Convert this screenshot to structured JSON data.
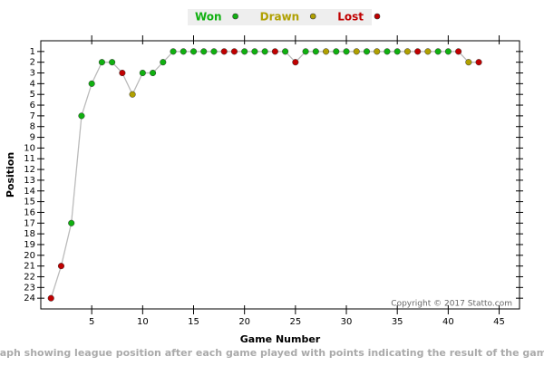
{
  "chart_data": {
    "type": "line",
    "x_label": "Game Number",
    "y_label": "Position",
    "caption": "Graph showing league position after each game played with points indicating the result of the game.",
    "copyright": "Copyright © 2017 Statto.com",
    "x": [
      1,
      2,
      3,
      4,
      5,
      6,
      7,
      8,
      9,
      10,
      11,
      12,
      13,
      14,
      15,
      16,
      17,
      18,
      19,
      20,
      21,
      22,
      23,
      24,
      25,
      26,
      27,
      28,
      29,
      30,
      31,
      32,
      33,
      34,
      35,
      36,
      37,
      38,
      39,
      40,
      41,
      42,
      43
    ],
    "values": [
      24,
      21,
      17,
      7,
      4,
      2,
      2,
      3,
      5,
      3,
      3,
      2,
      1,
      1,
      1,
      1,
      1,
      1,
      1,
      1,
      1,
      1,
      1,
      1,
      2,
      1,
      1,
      1,
      1,
      1,
      1,
      1,
      1,
      1,
      1,
      1,
      1,
      1,
      1,
      1,
      1,
      2,
      2
    ],
    "results": [
      "Lost",
      "Lost",
      "Won",
      "Won",
      "Won",
      "Won",
      "Won",
      "Lost",
      "Drawn",
      "Won",
      "Won",
      "Won",
      "Won",
      "Won",
      "Won",
      "Won",
      "Won",
      "Lost",
      "Lost",
      "Won",
      "Won",
      "Won",
      "Lost",
      "Won",
      "Lost",
      "Won",
      "Won",
      "Drawn",
      "Won",
      "Won",
      "Drawn",
      "Won",
      "Drawn",
      "Won",
      "Won",
      "Drawn",
      "Lost",
      "Drawn",
      "Won",
      "Won",
      "Lost",
      "Drawn",
      "Lost"
    ],
    "legend": [
      {
        "name": "Won",
        "color": "#10b010"
      },
      {
        "name": "Drawn",
        "color": "#b0a000"
      },
      {
        "name": "Lost",
        "color": "#c00000"
      }
    ],
    "line_color": "#bbbbbb",
    "xlim": [
      0,
      47
    ],
    "xticks": [
      5,
      10,
      15,
      20,
      25,
      30,
      35,
      40,
      45
    ],
    "ylim": [
      0,
      25
    ],
    "y_inverted": true,
    "yticks": [
      1,
      2,
      3,
      4,
      5,
      6,
      7,
      8,
      9,
      10,
      11,
      12,
      13,
      14,
      15,
      16,
      17,
      18,
      19,
      20,
      21,
      22,
      23,
      24
    ]
  }
}
